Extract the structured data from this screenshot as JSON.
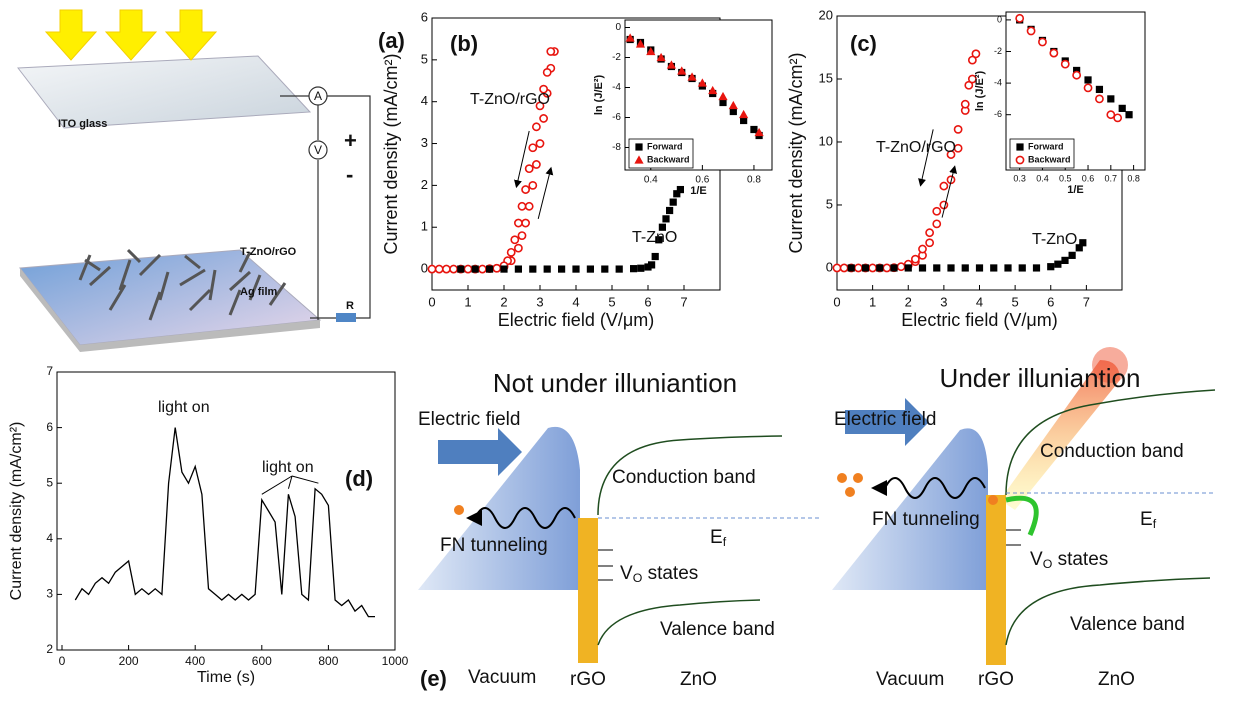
{
  "chart_data": [
    {
      "type": "scatter",
      "panel_label": "(b)",
      "x_label": "Electric field (V/μm)",
      "y_label": "Current density (mA/cm²)",
      "xlim": [
        0,
        8
      ],
      "ylim": [
        -0.5,
        6
      ],
      "xticks": [
        0,
        1,
        2,
        3,
        4,
        5,
        6,
        7
      ],
      "yticks": [
        0,
        1,
        2,
        3,
        4,
        5,
        6
      ],
      "series": [
        {
          "name": "T-ZnO/rGO",
          "color": "#e8150f",
          "marker": "circle",
          "x": [
            0,
            0.2,
            0.4,
            0.6,
            0.8,
            1.0,
            1.2,
            1.4,
            1.6,
            1.8,
            2.0,
            2.2,
            2.4,
            2.5,
            2.6,
            2.7,
            2.8,
            2.9,
            3.0,
            3.1,
            3.2,
            3.3,
            3.4,
            3.3,
            3.2,
            3.1,
            3.0,
            2.9,
            2.8,
            2.7,
            2.6,
            2.5,
            2.4,
            2.3,
            2.2,
            2.1,
            2.0,
            1.8
          ],
          "values": [
            0,
            0,
            0,
            0,
            0,
            0,
            0,
            0,
            0.01,
            0.02,
            0.05,
            0.2,
            0.5,
            0.8,
            1.1,
            1.5,
            2.0,
            2.5,
            3.0,
            3.6,
            4.2,
            4.8,
            5.2,
            5.2,
            4.7,
            4.3,
            3.9,
            3.4,
            2.9,
            2.4,
            1.9,
            1.5,
            1.1,
            0.7,
            0.4,
            0.2,
            0.08,
            0.02
          ]
        },
        {
          "name": "T-ZnO",
          "color": "#000000",
          "marker": "square",
          "x": [
            0.8,
            1.2,
            1.6,
            2.0,
            2.4,
            2.8,
            3.2,
            3.6,
            4.0,
            4.4,
            4.8,
            5.2,
            5.6,
            5.8,
            6.0,
            6.1,
            6.2,
            6.3,
            6.4,
            6.5,
            6.6,
            6.7,
            6.8,
            6.9
          ],
          "values": [
            0,
            0,
            0,
            0,
            0,
            0,
            0,
            0,
            0,
            0,
            0,
            0,
            0.01,
            0.02,
            0.05,
            0.1,
            0.3,
            0.7,
            1.0,
            1.2,
            1.4,
            1.6,
            1.8,
            1.9
          ]
        }
      ],
      "annotations": [
        "T-ZnO/rGO",
        "T-ZnO"
      ]
    },
    {
      "type": "scatter",
      "x_label": "1/E",
      "y_label": "ln (J/E²)",
      "xlim": [
        0.3,
        0.87
      ],
      "ylim": [
        -9.5,
        0.5
      ],
      "xticks": [
        0.4,
        0.6,
        0.8
      ],
      "yticks": [
        0,
        -2,
        -4,
        -6,
        -8
      ],
      "legend": "lower left",
      "series": [
        {
          "name": "Forward",
          "color": "#000000",
          "marker": "square",
          "x": [
            0.32,
            0.36,
            0.4,
            0.44,
            0.48,
            0.52,
            0.56,
            0.6,
            0.64,
            0.68,
            0.72,
            0.76,
            0.8,
            0.82
          ],
          "values": [
            -0.8,
            -1.0,
            -1.5,
            -2.1,
            -2.6,
            -3.0,
            -3.4,
            -3.9,
            -4.4,
            -5.0,
            -5.6,
            -6.2,
            -6.8,
            -7.2
          ]
        },
        {
          "name": "Backward",
          "color": "#e8150f",
          "marker": "triangle",
          "x": [
            0.32,
            0.36,
            0.4,
            0.44,
            0.48,
            0.52,
            0.56,
            0.6,
            0.64,
            0.68,
            0.72,
            0.76,
            0.82
          ],
          "values": [
            -0.7,
            -1.1,
            -1.6,
            -2.0,
            -2.5,
            -2.9,
            -3.3,
            -3.7,
            -4.2,
            -4.6,
            -5.2,
            -5.8,
            -7.0
          ]
        }
      ]
    },
    {
      "type": "scatter",
      "panel_label": "(c)",
      "x_label": "Electric field (V/μm)",
      "y_label": "Current density (mA/cm²)",
      "xlim": [
        0,
        8
      ],
      "ylim": [
        -1.75,
        20
      ],
      "xticks": [
        0,
        1,
        2,
        3,
        4,
        5,
        6,
        7
      ],
      "yticks": [
        0,
        5,
        10,
        15,
        20
      ],
      "series": [
        {
          "name": "T-ZnO/rGO",
          "color": "#e8150f",
          "marker": "circle",
          "x": [
            0,
            0.2,
            0.4,
            0.6,
            0.8,
            1.0,
            1.2,
            1.4,
            1.6,
            1.8,
            2.0,
            2.2,
            2.4,
            2.6,
            2.8,
            3.0,
            3.2,
            3.4,
            3.6,
            3.7,
            3.8,
            3.9,
            3.8,
            3.6,
            3.4,
            3.2,
            3.0,
            2.8,
            2.6,
            2.4,
            2.2,
            2.0
          ],
          "values": [
            0,
            0,
            0,
            0,
            0,
            0,
            0,
            0,
            0.02,
            0.1,
            0.2,
            0.5,
            1,
            2,
            3.5,
            5,
            7,
            9.5,
            12.5,
            14.5,
            16.5,
            17,
            15,
            13,
            11,
            9,
            6.5,
            4.5,
            2.8,
            1.5,
            0.7,
            0.3
          ]
        },
        {
          "name": "T-ZnO",
          "color": "#000000",
          "marker": "square",
          "x": [
            0.4,
            0.8,
            1.2,
            1.6,
            2.0,
            2.4,
            2.8,
            3.2,
            3.6,
            4.0,
            4.4,
            4.8,
            5.2,
            5.6,
            6.0,
            6.2,
            6.4,
            6.6,
            6.8,
            6.9
          ],
          "values": [
            0,
            0,
            0,
            0,
            0,
            0,
            0,
            0,
            0,
            0,
            0,
            0,
            0,
            0,
            0.1,
            0.3,
            0.6,
            1.0,
            1.6,
            2.0
          ]
        }
      ],
      "annotations": [
        "T-ZnO/rGO",
        "T-ZnO"
      ]
    },
    {
      "type": "scatter",
      "x_label": "1/E",
      "y_label": "ln (J/E²)",
      "xlim": [
        0.24,
        0.85
      ],
      "ylim": [
        -9.5,
        0.5
      ],
      "xticks": [
        0.3,
        0.4,
        0.5,
        0.6,
        0.7,
        0.8
      ],
      "yticks": [
        0,
        -2,
        -4,
        -6
      ],
      "legend": "lower left",
      "series": [
        {
          "name": "Forward",
          "color": "#000000",
          "marker": "square",
          "x": [
            0.3,
            0.35,
            0.4,
            0.45,
            0.5,
            0.55,
            0.6,
            0.65,
            0.7,
            0.75,
            0.78
          ],
          "values": [
            0,
            -0.6,
            -1.3,
            -2.0,
            -2.6,
            -3.2,
            -3.8,
            -4.4,
            -5.0,
            -5.6,
            -6.0
          ]
        },
        {
          "name": "Backward",
          "color": "#e8150f",
          "marker": "circle",
          "x": [
            0.3,
            0.35,
            0.4,
            0.45,
            0.5,
            0.55,
            0.6,
            0.65,
            0.7,
            0.73
          ],
          "values": [
            0.1,
            -0.7,
            -1.4,
            -2.1,
            -2.8,
            -3.5,
            -4.3,
            -5.0,
            -6.0,
            -6.2
          ]
        }
      ]
    },
    {
      "type": "line",
      "panel_label": "(d)",
      "x_label": "Time (s)",
      "y_label": "Current density (mA/cm²)",
      "xlim": [
        -15,
        1000
      ],
      "ylim": [
        2,
        7
      ],
      "xticks": [
        0,
        200,
        400,
        600,
        800,
        1000
      ],
      "yticks": [
        2,
        3,
        4,
        5,
        6,
        7
      ],
      "color": "#000000",
      "x": [
        40,
        60,
        80,
        100,
        120,
        140,
        160,
        180,
        200,
        220,
        240,
        260,
        280,
        300,
        320,
        340,
        360,
        380,
        400,
        420,
        440,
        460,
        480,
        500,
        520,
        540,
        560,
        580,
        600,
        620,
        640,
        660,
        680,
        700,
        720,
        740,
        760,
        780,
        800,
        820,
        840,
        860,
        880,
        900,
        920,
        940
      ],
      "values": [
        2.9,
        3.1,
        3.0,
        3.2,
        3.3,
        3.2,
        3.4,
        3.5,
        3.6,
        3.0,
        3.1,
        3.0,
        3.1,
        3.0,
        5.0,
        6.0,
        5.2,
        5.0,
        5.3,
        4.8,
        3.1,
        3.0,
        2.9,
        3.0,
        2.9,
        3.0,
        2.9,
        3.0,
        4.7,
        4.5,
        4.3,
        3.0,
        4.8,
        4.4,
        3.0,
        2.9,
        4.9,
        4.8,
        4.6,
        2.9,
        2.8,
        2.9,
        2.7,
        2.8,
        2.6,
        2.6
      ],
      "annotations": [
        "light on",
        "light on"
      ]
    }
  ],
  "diagram_a": {
    "panel_label": "(a)",
    "top_label": "ITO glass",
    "middle_label": "T-ZnO/rGO",
    "bottom_label": "Ag film",
    "ammeter": "A",
    "voltmeter": "V",
    "plus": "+",
    "minus": "-",
    "resistor": "R"
  },
  "diagram_e": {
    "panel_label": "(e)",
    "left": {
      "title": "Not under illuniantion",
      "field": "Electric field",
      "conduction": "Conduction band",
      "fermi": {
        "label": "E",
        "subscript": "f"
      },
      "tunneling": "FN tunneling",
      "states": {
        "label": "V",
        "subscript": "O",
        "suffix": " states"
      },
      "valence": "Valence band",
      "vacuum": "Vacuum",
      "rgo": "rGO",
      "zno": "ZnO"
    },
    "right": {
      "title": "Under illuniantion",
      "field": "Electric field",
      "conduction": "Conduction band",
      "fermi": {
        "label": "E",
        "subscript": "f"
      },
      "tunneling": "FN tunneling",
      "states": {
        "label": "V",
        "subscript": "O",
        "suffix": " states"
      },
      "valence": "Valence band",
      "vacuum": "Vacuum",
      "rgo": "rGO",
      "zno": "ZnO"
    }
  }
}
